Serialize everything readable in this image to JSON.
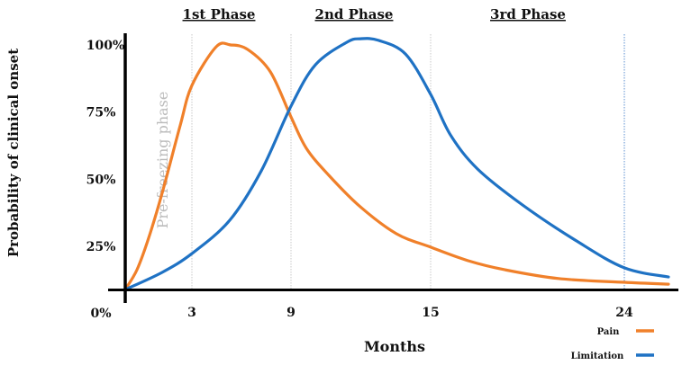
{
  "chart_data": {
    "type": "line",
    "title": "",
    "xlabel": "Months",
    "ylabel": "Probability of clinical onset",
    "x_ticks": [
      3,
      9,
      15,
      24
    ],
    "x_range": [
      0,
      26
    ],
    "y_ticks": [
      "0%",
      "25%",
      "50%",
      "75%",
      "100%"
    ],
    "y_range": [
      0,
      100
    ],
    "phases": [
      "1st Phase",
      "2nd Phase",
      "3rd Phase"
    ],
    "annotation": "Pre-freezing phase",
    "grid": "vertical dotted lines at 3, 9, 15, 24",
    "legend_position": "bottom-right",
    "series": [
      {
        "name": "Pain",
        "color": "#f0802a",
        "points": [
          [
            0,
            8.9
          ],
          [
            0.53,
            16.3
          ],
          [
            1.05,
            28
          ],
          [
            1.66,
            44.8
          ],
          [
            2.47,
            69.9
          ],
          [
            3,
            84.9
          ],
          [
            4.47,
            99.3
          ],
          [
            5.35,
            100
          ],
          [
            6.38,
            98.3
          ],
          [
            7.75,
            90
          ],
          [
            9,
            73.2
          ],
          [
            9.66,
            61.5
          ],
          [
            10.63,
            51.4
          ],
          [
            11.98,
            39.7
          ],
          [
            13.53,
            29.7
          ],
          [
            15,
            24.7
          ],
          [
            16.76,
            19.6
          ],
          [
            18.43,
            16.3
          ],
          [
            20.94,
            13
          ],
          [
            24,
            11.6
          ],
          [
            26.05,
            10.9
          ]
        ]
      },
      {
        "name": "Limitation",
        "color": "#1f72c4",
        "points": [
          [
            0,
            8.9
          ],
          [
            1.66,
            15.3
          ],
          [
            3,
            22.3
          ],
          [
            5.29,
            34.7
          ],
          [
            7.2,
            53.1
          ],
          [
            9,
            77.2
          ],
          [
            10.05,
            92.6
          ],
          [
            11.4,
            101
          ],
          [
            11.98,
            102.3
          ],
          [
            12.76,
            101.7
          ],
          [
            13.92,
            96.6
          ],
          [
            15,
            81.6
          ],
          [
            15.92,
            66.5
          ],
          [
            17.18,
            53.8
          ],
          [
            19.27,
            40.4
          ],
          [
            21.78,
            27
          ],
          [
            24,
            17
          ],
          [
            26.05,
            13.6
          ]
        ]
      }
    ]
  }
}
